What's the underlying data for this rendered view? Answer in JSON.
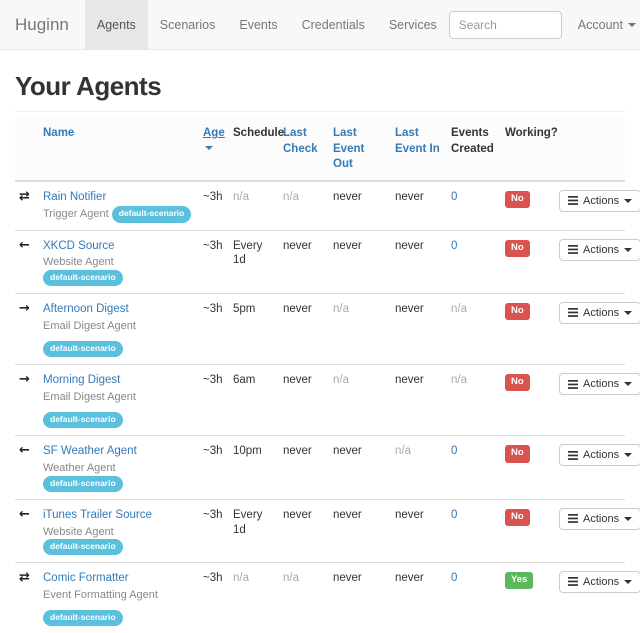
{
  "navbar": {
    "brand": "Huginn",
    "items": [
      {
        "label": "Agents",
        "active": true
      },
      {
        "label": "Scenarios",
        "active": false
      },
      {
        "label": "Events",
        "active": false
      },
      {
        "label": "Credentials",
        "active": false
      },
      {
        "label": "Services",
        "active": false
      }
    ],
    "search_placeholder": "Search",
    "account_label": "Account"
  },
  "page": {
    "title": "Your Agents"
  },
  "table": {
    "headers": [
      "Name",
      "Age",
      "Schedule",
      "Last Check",
      "Last Event Out",
      "Last Event In",
      "Events Created",
      "Working?"
    ],
    "actions_label": "Actions",
    "rows": [
      {
        "icon_glyph": "⇄",
        "icon_name": "bidirectional-arrows-icon",
        "name": "Rain Notifier",
        "type": "Trigger Agent",
        "scenario": "default-scenario",
        "age": "~3h",
        "schedule": "n/a",
        "last_check": "n/a",
        "last_event_out": "never",
        "last_event_in": "never",
        "events_created": "0",
        "working": "No"
      },
      {
        "icon_glyph": "←",
        "icon_name": "arrow-left-icon",
        "name": "XKCD Source",
        "type": "Website Agent",
        "scenario": "default-scenario",
        "age": "~3h",
        "schedule": "Every 1d",
        "last_check": "never",
        "last_event_out": "never",
        "last_event_in": "never",
        "events_created": "0",
        "working": "No"
      },
      {
        "icon_glyph": "→",
        "icon_name": "arrow-right-icon",
        "name": "Afternoon Digest",
        "type": "Email Digest Agent",
        "scenario": "default-scenario",
        "age": "~3h",
        "schedule": "5pm",
        "last_check": "never",
        "last_event_out": "n/a",
        "last_event_in": "never",
        "events_created": "n/a",
        "working": "No"
      },
      {
        "icon_glyph": "→",
        "icon_name": "arrow-right-icon",
        "name": "Morning Digest",
        "type": "Email Digest Agent",
        "scenario": "default-scenario",
        "age": "~3h",
        "schedule": "6am",
        "last_check": "never",
        "last_event_out": "n/a",
        "last_event_in": "never",
        "events_created": "n/a",
        "working": "No"
      },
      {
        "icon_glyph": "←",
        "icon_name": "arrow-left-icon",
        "name": "SF Weather Agent",
        "type": "Weather Agent",
        "scenario": "default-scenario",
        "age": "~3h",
        "schedule": "10pm",
        "last_check": "never",
        "last_event_out": "never",
        "last_event_in": "n/a",
        "events_created": "0",
        "working": "No"
      },
      {
        "icon_glyph": "←",
        "icon_name": "arrow-left-icon",
        "name": "iTunes Trailer Source",
        "type": "Website Agent",
        "scenario": "default-scenario",
        "age": "~3h",
        "schedule": "Every 1d",
        "last_check": "never",
        "last_event_out": "never",
        "last_event_in": "never",
        "events_created": "0",
        "working": "No"
      },
      {
        "icon_glyph": "⇄",
        "icon_name": "bidirectional-arrows-icon",
        "name": "Comic Formatter",
        "type": "Event Formatting Agent",
        "scenario": "default-scenario",
        "age": "~3h",
        "schedule": "n/a",
        "last_check": "n/a",
        "last_event_out": "never",
        "last_event_in": "never",
        "events_created": "0",
        "working": "Yes"
      }
    ]
  },
  "colors": {
    "link_blue": "#337ab7",
    "badge_info": "#5bc0de",
    "status_no_red": "#d9534f",
    "status_yes_green": "#5cb85c",
    "navbar_bg": "#f8f8f8"
  }
}
